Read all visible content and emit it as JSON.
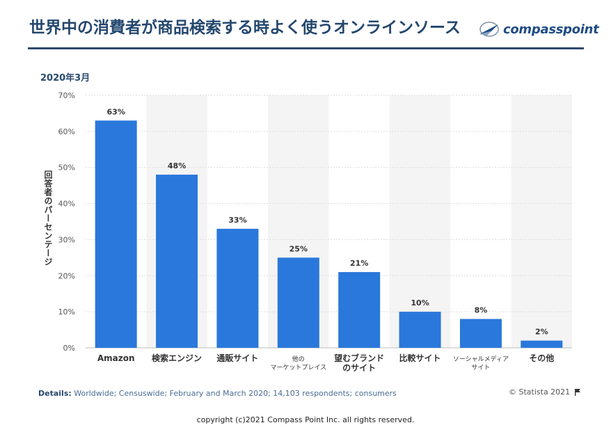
{
  "header": {
    "title": "世界中の消費者が商品検索する時よく使うオンラインソース",
    "logo_text": "compasspoint"
  },
  "chart_data": {
    "type": "bar",
    "subtitle": "2020年3月",
    "ylabel": "回答者のパーセンテージ",
    "ylim": [
      0,
      70
    ],
    "yticks": [
      "0%",
      "10%",
      "20%",
      "30%",
      "40%",
      "50%",
      "60%",
      "70%"
    ],
    "grid": true,
    "categories": [
      [
        "Amazon"
      ],
      [
        "検索エンジン"
      ],
      [
        "通販サイト"
      ],
      [
        "他の",
        "マーケットプレイス"
      ],
      [
        "望むブランド",
        "のサイト"
      ],
      [
        "比較サイト"
      ],
      [
        "ソーシャルメディア",
        "サイト"
      ],
      [
        "その他"
      ]
    ],
    "values": [
      63,
      48,
      33,
      25,
      21,
      10,
      8,
      2
    ],
    "value_labels": [
      "63%",
      "48%",
      "33%",
      "25%",
      "21%",
      "10%",
      "8%",
      "2%"
    ],
    "bar_color": "#2a78db"
  },
  "footer": {
    "details_label": "Details:",
    "details_text": "Worldwide; Censuswide; February and March 2020; 14,103 respondents; consumers",
    "credit": "© Statista 2021",
    "copyright": "copyright (c)2021 Compass Point Inc. all rights reserved."
  }
}
